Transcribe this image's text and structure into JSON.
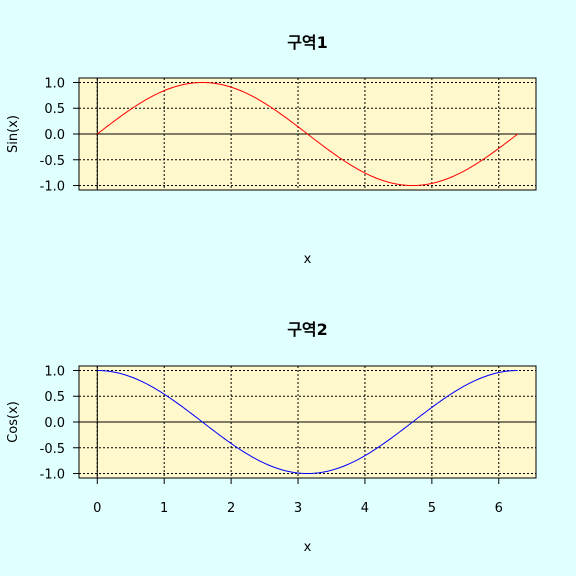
{
  "figure": {
    "background": "#e0ffff",
    "panel_background": "#fff8cc"
  },
  "chart_data": [
    {
      "type": "line",
      "title": "구역1",
      "xlabel": "x",
      "ylabel": "Sin(x)",
      "xlim": [
        0,
        6.2832
      ],
      "ylim": [
        -1,
        1
      ],
      "yticks": [
        1.0,
        0.5,
        0.0,
        -0.5,
        -1.0
      ],
      "ytick_labels": [
        "1.0",
        "0.5",
        "0.0",
        "-0.5",
        "-1.0"
      ],
      "xticks": [
        0,
        1,
        2,
        3,
        4,
        5,
        6
      ],
      "xtick_labels": [],
      "grid": true,
      "reference_lines": {
        "x": 0,
        "y": 0
      },
      "series": [
        {
          "function": "sin",
          "color": "#ff0000",
          "x_from": 0,
          "x_to": 6.2832,
          "x": [
            0,
            0.5,
            1.0,
            1.5708,
            2.0,
            2.5,
            3.1416,
            3.5,
            4.0,
            4.7124,
            5.0,
            5.5,
            6.2832
          ],
          "y": [
            0,
            0.479,
            0.841,
            1.0,
            0.909,
            0.598,
            0,
            -0.351,
            -0.757,
            -1.0,
            -0.959,
            -0.706,
            0
          ]
        }
      ]
    },
    {
      "type": "line",
      "title": "구역2",
      "xlabel": "x",
      "ylabel": "Cos(x)",
      "xlim": [
        0,
        6.2832
      ],
      "ylim": [
        -1,
        1
      ],
      "yticks": [
        1.0,
        0.5,
        0.0,
        -0.5,
        -1.0
      ],
      "ytick_labels": [
        "1.0",
        "0.5",
        "0.0",
        "-0.5",
        "-1.0"
      ],
      "xticks": [
        0,
        1,
        2,
        3,
        4,
        5,
        6
      ],
      "xtick_labels": [
        "0",
        "1",
        "2",
        "3",
        "4",
        "5",
        "6"
      ],
      "grid": true,
      "reference_lines": {
        "x": 0,
        "y": 0
      },
      "series": [
        {
          "function": "cos",
          "color": "#0000ff",
          "x_from": 0,
          "x_to": 6.2832,
          "x": [
            0,
            0.5,
            1.0,
            1.5708,
            2.0,
            2.5,
            3.1416,
            3.5,
            4.0,
            4.7124,
            5.0,
            5.5,
            6.2832
          ],
          "y": [
            1.0,
            0.878,
            0.54,
            0,
            -0.416,
            -0.801,
            -1.0,
            -0.936,
            -0.654,
            0,
            0.284,
            0.709,
            1.0
          ]
        }
      ]
    }
  ]
}
